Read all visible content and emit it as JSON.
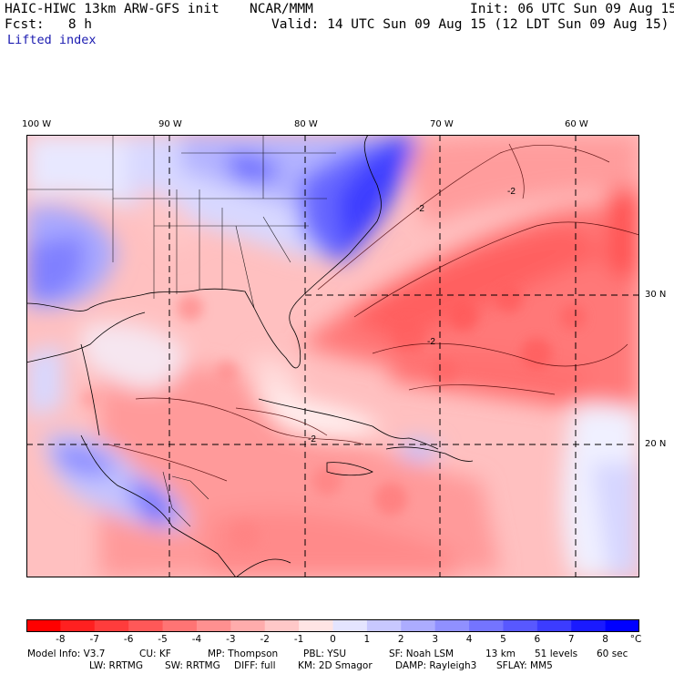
{
  "header": {
    "model_title": "HAIC-HIWC 13km ARW-GFS init",
    "org": "NCAR/MMM",
    "init": "Init: 06 UTC Sun 09 Aug 15",
    "fcst": "Fcst:   8 h",
    "valid": "Valid: 14 UTC Sun 09 Aug 15 (12 LDT Sun 09 Aug 15)",
    "field": "Lifted index"
  },
  "map": {
    "lon_labels": [
      "100 W",
      "90 W",
      "80 W",
      "70 W",
      "60 W"
    ],
    "lat_labels": [
      "30 N",
      "20 N"
    ],
    "contour_labels": [
      "-2",
      "-2",
      "-2",
      "-2"
    ]
  },
  "colorbar": {
    "labels": [
      "-8",
      "-7",
      "-6",
      "-5",
      "-4",
      "-3",
      "-2",
      "-1",
      "0",
      "1",
      "2",
      "3",
      "4",
      "5",
      "6",
      "7",
      "8",
      "°C"
    ],
    "colors": [
      "#ff0000",
      "#ff2020",
      "#ff3c3c",
      "#ff5858",
      "#ff7474",
      "#ff9090",
      "#ffacac",
      "#ffc8c8",
      "#ffe4e4",
      "#e4e4ff",
      "#c8c8ff",
      "#acacff",
      "#9090ff",
      "#7474ff",
      "#5858ff",
      "#3c3cff",
      "#1a1aff",
      "#0000ff"
    ]
  },
  "footer": {
    "line1": [
      "Model Info: V3.7",
      "CU: KF",
      "MP: Thompson",
      "PBL: YSU",
      "SF: Noah LSM",
      "13 km",
      "51 levels",
      "60 sec"
    ],
    "line2": [
      "LW: RRTMG",
      "SW: RRTMG",
      "DIFF: full",
      "KM: 2D Smagor",
      "DAMP: Rayleigh3",
      "SFLAY: MM5"
    ]
  }
}
